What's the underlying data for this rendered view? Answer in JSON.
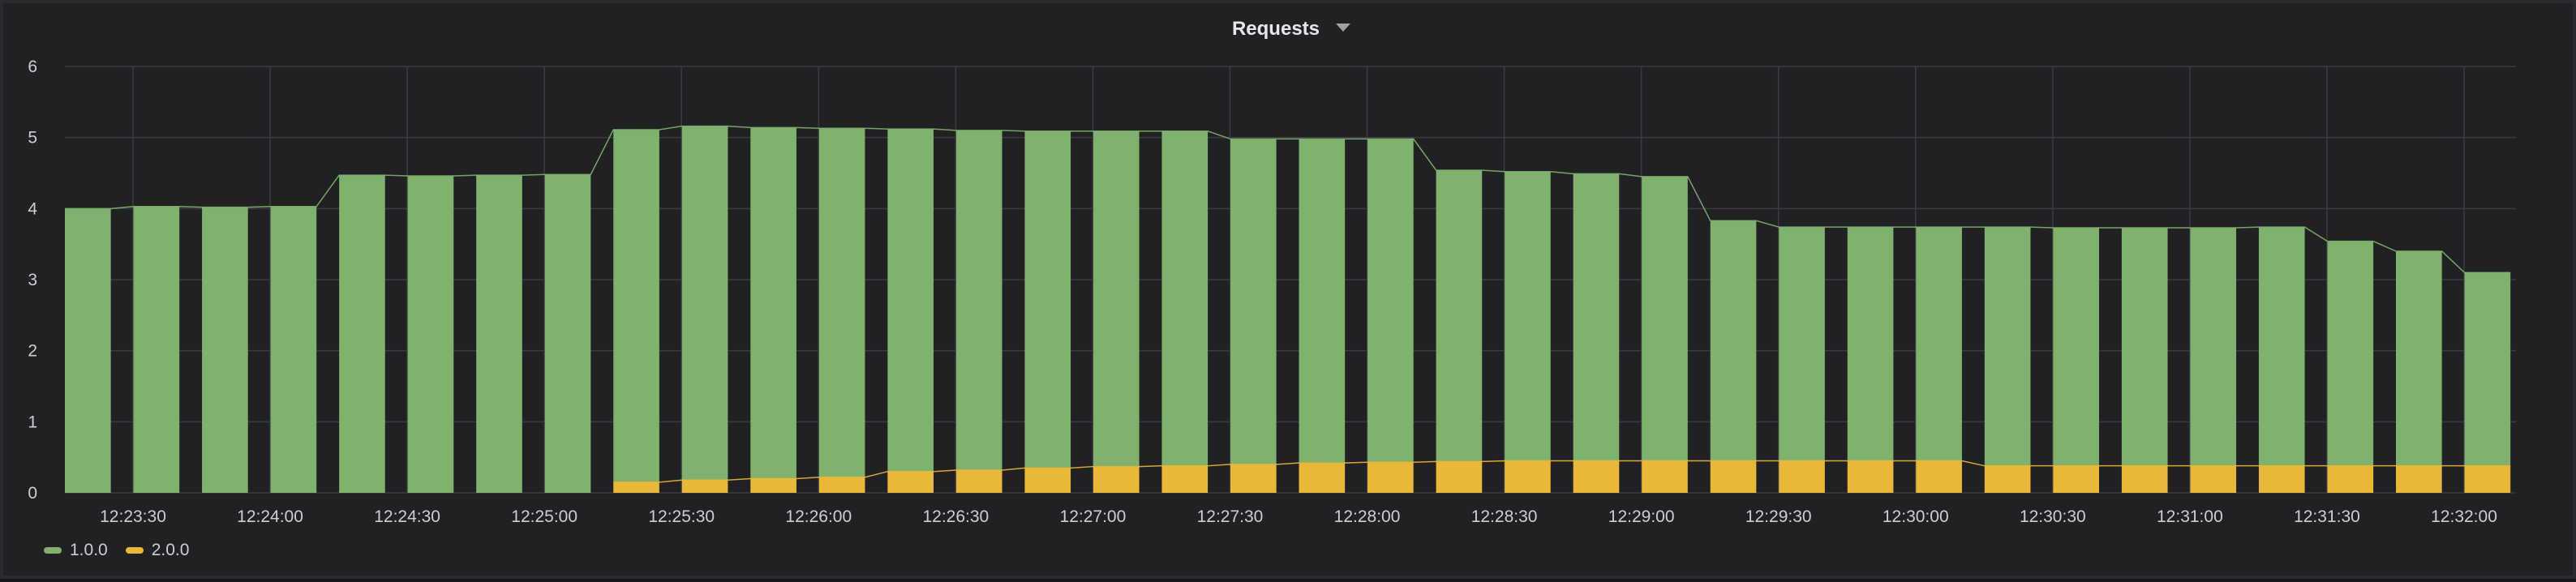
{
  "panel": {
    "title": "Requests"
  },
  "colors": {
    "background": "#212124",
    "grid": "#3b3c41",
    "tick_text": "#c7d0d9"
  },
  "chart_data": {
    "type": "bar",
    "stacked": true,
    "title": "Requests",
    "xlabel": "",
    "ylabel": "",
    "ylim": [
      0,
      6
    ],
    "yticks": [
      0,
      1,
      2,
      3,
      4,
      5,
      6
    ],
    "grid": true,
    "legend_position": "bottom-left",
    "x_tick_labels": [
      "12:23:30",
      "12:24:00",
      "12:24:30",
      "12:25:00",
      "12:25:30",
      "12:26:00",
      "12:26:30",
      "12:27:00",
      "12:27:30",
      "12:28:00",
      "12:28:30",
      "12:29:00",
      "12:29:30",
      "12:30:00",
      "12:30:30",
      "12:31:00",
      "12:31:30",
      "12:32:00"
    ],
    "categories": [
      "12:23:10",
      "12:23:25",
      "12:23:40",
      "12:23:55",
      "12:24:10",
      "12:24:25",
      "12:24:40",
      "12:24:55",
      "12:25:10",
      "12:25:25",
      "12:25:40",
      "12:25:55",
      "12:26:10",
      "12:26:25",
      "12:26:40",
      "12:26:55",
      "12:27:10",
      "12:27:25",
      "12:27:40",
      "12:27:55",
      "12:28:10",
      "12:28:25",
      "12:28:40",
      "12:28:55",
      "12:29:10",
      "12:29:25",
      "12:29:40",
      "12:29:55",
      "12:30:10",
      "12:30:25",
      "12:30:40",
      "12:30:55",
      "12:31:10",
      "12:31:25",
      "12:31:40",
      "12:31:55"
    ],
    "series": [
      {
        "name": "2.0.0",
        "color": "#eab839",
        "values": [
          0,
          0,
          0,
          0,
          0,
          0,
          0,
          0,
          0.15,
          0.18,
          0.2,
          0.22,
          0.3,
          0.32,
          0.35,
          0.37,
          0.38,
          0.4,
          0.42,
          0.43,
          0.44,
          0.45,
          0.45,
          0.45,
          0.45,
          0.45,
          0.45,
          0.45,
          0.38,
          0.38,
          0.38,
          0.38,
          0.38,
          0.38,
          0.38,
          0.38
        ]
      },
      {
        "name": "1.0.0",
        "color": "#7eb26d",
        "values": [
          4.0,
          4.03,
          4.02,
          4.03,
          4.47,
          4.46,
          4.47,
          4.48,
          4.96,
          4.98,
          4.94,
          4.91,
          4.82,
          4.78,
          4.74,
          4.72,
          4.71,
          4.58,
          4.56,
          4.55,
          4.1,
          4.07,
          4.04,
          4.0,
          3.38,
          3.29,
          3.29,
          3.29,
          3.36,
          3.35,
          3.35,
          3.35,
          3.36,
          3.16,
          3.02,
          2.72
        ]
      }
    ]
  }
}
